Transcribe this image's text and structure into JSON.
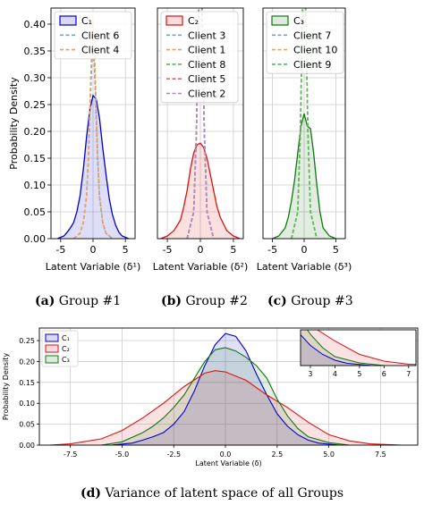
{
  "chart_data": [
    {
      "id": "a",
      "type": "line",
      "caption_letter": "(a)",
      "caption_text": " Group #1",
      "xlabel": "Latent Variable (δ¹)",
      "ylabel": "Probability Density",
      "xlim": [
        -6.5,
        6.5
      ],
      "ylim": [
        0,
        0.43
      ],
      "xticks": [
        -5,
        0,
        5
      ],
      "yticks": [
        0.0,
        0.05,
        0.1,
        0.15,
        0.2,
        0.25,
        0.3,
        0.35,
        0.4
      ],
      "grid": true,
      "legend_position": "top-left",
      "series": [
        {
          "name": "C₁",
          "color": "#0000cc",
          "kind": "filled",
          "x": [
            -5.5,
            -4.5,
            -4,
            -3.5,
            -3,
            -2.5,
            -2,
            -1.5,
            -1,
            -0.5,
            0,
            0.5,
            1,
            1.5,
            2,
            2.5,
            3,
            3.5,
            4,
            4.5,
            5.5
          ],
          "y": [
            0,
            0.005,
            0.012,
            0.02,
            0.03,
            0.05,
            0.08,
            0.13,
            0.19,
            0.24,
            0.267,
            0.26,
            0.225,
            0.17,
            0.12,
            0.075,
            0.045,
            0.025,
            0.012,
            0.005,
            0
          ]
        },
        {
          "name": "Client 6",
          "color": "#5fa8d9",
          "kind": "dashed",
          "x": [
            -3,
            -2,
            -1.5,
            -1,
            -0.7,
            -0.4,
            -0.2,
            0,
            0.2,
            0.4,
            0.7,
            1,
            1.5,
            2,
            3
          ],
          "y": [
            0,
            0.01,
            0.03,
            0.08,
            0.15,
            0.26,
            0.33,
            0.36,
            0.33,
            0.26,
            0.15,
            0.08,
            0.03,
            0.01,
            0
          ]
        },
        {
          "name": "Client 4",
          "color": "#f0a050",
          "kind": "dashed",
          "x": [
            -3,
            -2,
            -1.5,
            -1,
            -0.7,
            -0.4,
            -0.2,
            0,
            0.2,
            0.4,
            0.7,
            1,
            1.5,
            2,
            3
          ],
          "y": [
            0,
            0.01,
            0.03,
            0.08,
            0.16,
            0.28,
            0.36,
            0.41,
            0.36,
            0.28,
            0.16,
            0.08,
            0.03,
            0.01,
            0
          ]
        }
      ]
    },
    {
      "id": "b",
      "type": "line",
      "caption_letter": "(b)",
      "caption_text": " Group #2",
      "xlabel": "Latent Variable (δ²)",
      "ylabel": "",
      "xlim": [
        -6.5,
        6.5
      ],
      "ylim": [
        0,
        0.43
      ],
      "xticks": [
        -5,
        0,
        5
      ],
      "grid": true,
      "legend_position": "top-left",
      "series": [
        {
          "name": "C₂",
          "color": "#dd1111",
          "kind": "filled",
          "x": [
            -6,
            -5,
            -4,
            -3,
            -2.5,
            -2,
            -1.5,
            -1,
            -0.5,
            0,
            0.5,
            1,
            1.5,
            2,
            2.5,
            3,
            4,
            5,
            6
          ],
          "y": [
            0,
            0.005,
            0.015,
            0.035,
            0.06,
            0.09,
            0.13,
            0.16,
            0.175,
            0.178,
            0.17,
            0.15,
            0.12,
            0.09,
            0.06,
            0.04,
            0.015,
            0.005,
            0
          ]
        },
        {
          "name": "Client 3",
          "color": "#5fa8d9",
          "kind": "dashed",
          "x": [
            -2,
            -1,
            -0.6,
            -0.3,
            0,
            0.3,
            0.6,
            1,
            2
          ],
          "y": [
            0,
            0.05,
            0.2,
            0.4,
            0.6,
            0.4,
            0.2,
            0.05,
            0
          ]
        },
        {
          "name": "Client 1",
          "color": "#f0a050",
          "kind": "dashed",
          "x": [
            -2,
            -1,
            -0.6,
            -0.3,
            0,
            0.3,
            0.6,
            1,
            2
          ],
          "y": [
            0,
            0.05,
            0.2,
            0.4,
            0.6,
            0.4,
            0.2,
            0.05,
            0
          ]
        },
        {
          "name": "Client 8",
          "color": "#55bb55",
          "kind": "dashed",
          "x": [
            -2,
            -1,
            -0.6,
            -0.3,
            0,
            0.3,
            0.6,
            1,
            2
          ],
          "y": [
            0,
            0.05,
            0.2,
            0.4,
            0.6,
            0.4,
            0.2,
            0.05,
            0
          ]
        },
        {
          "name": "Client 5",
          "color": "#e06a6a",
          "kind": "dashed",
          "x": [
            -2,
            -1,
            -0.6,
            -0.3,
            0,
            0.3,
            0.6,
            1,
            2
          ],
          "y": [
            0,
            0.05,
            0.2,
            0.4,
            0.6,
            0.4,
            0.2,
            0.05,
            0
          ]
        },
        {
          "name": "Client 2",
          "color": "#a78bcc",
          "kind": "dashed",
          "x": [
            -2,
            -1,
            -0.6,
            -0.3,
            0,
            0.3,
            0.6,
            1,
            2
          ],
          "y": [
            0,
            0.05,
            0.2,
            0.4,
            0.6,
            0.4,
            0.2,
            0.05,
            0
          ]
        }
      ]
    },
    {
      "id": "c",
      "type": "line",
      "caption_letter": "(c)",
      "caption_text": " Group #3",
      "xlabel": "Latent Variable (δ³)",
      "ylabel": "",
      "xlim": [
        -6.5,
        6.5
      ],
      "ylim": [
        0,
        0.43
      ],
      "xticks": [
        -5,
        0,
        5
      ],
      "grid": true,
      "legend_position": "top-left",
      "series": [
        {
          "name": "C₃",
          "color": "#117711",
          "kind": "filled",
          "x": [
            -5,
            -4,
            -3,
            -2.5,
            -2,
            -1.5,
            -1,
            -0.5,
            0,
            0.5,
            1,
            1.5,
            2,
            2.5,
            3,
            4,
            5
          ],
          "y": [
            0,
            0.005,
            0.02,
            0.04,
            0.07,
            0.11,
            0.16,
            0.21,
            0.233,
            0.21,
            0.205,
            0.16,
            0.1,
            0.05,
            0.02,
            0.005,
            0
          ]
        },
        {
          "name": "Client 7",
          "color": "#5fa8d9",
          "kind": "dashed",
          "x": [
            -2,
            -1,
            -0.6,
            -0.3,
            0,
            0.3,
            0.6,
            1,
            2
          ],
          "y": [
            0,
            0.05,
            0.2,
            0.4,
            0.6,
            0.4,
            0.2,
            0.05,
            0
          ]
        },
        {
          "name": "Client 10",
          "color": "#f0a050",
          "kind": "dashed",
          "x": [
            -2,
            -1,
            -0.6,
            -0.3,
            0,
            0.3,
            0.6,
            1,
            2
          ],
          "y": [
            0,
            0.05,
            0.2,
            0.4,
            0.6,
            0.4,
            0.2,
            0.05,
            0
          ]
        },
        {
          "name": "Client 9",
          "color": "#55bb55",
          "kind": "dashed",
          "x": [
            -2,
            -1,
            -0.6,
            -0.3,
            0,
            0.3,
            0.6,
            1,
            2
          ],
          "y": [
            0,
            0.05,
            0.2,
            0.4,
            0.6,
            0.4,
            0.2,
            0.05,
            0
          ]
        }
      ]
    },
    {
      "id": "d",
      "type": "area",
      "caption_letter": "(d)",
      "caption_text": " Variance of latent space of all Groups",
      "xlabel": "Latent Variable (δ)",
      "ylabel": "Probability Density",
      "xlim": [
        -9,
        9.3
      ],
      "ylim": [
        0,
        0.28
      ],
      "xticks": [
        -7.5,
        -5.0,
        -2.5,
        0.0,
        2.5,
        5.0,
        7.5
      ],
      "yticks": [
        0.0,
        0.05,
        0.1,
        0.15,
        0.2,
        0.25
      ],
      "grid": true,
      "legend_position": "top-left",
      "inset": {
        "xlim": [
          2.6,
          7.3
        ],
        "xticks": [
          3,
          4,
          5,
          6,
          7
        ]
      },
      "series": [
        {
          "name": "C₁",
          "color": "#0000cc",
          "x": [
            -5.5,
            -4.5,
            -4,
            -3.5,
            -3,
            -2.5,
            -2,
            -1.5,
            -1,
            -0.5,
            0,
            0.5,
            1,
            1.5,
            2,
            2.5,
            3,
            3.5,
            4,
            4.5,
            5.5
          ],
          "y": [
            0,
            0.005,
            0.012,
            0.02,
            0.03,
            0.05,
            0.08,
            0.13,
            0.19,
            0.24,
            0.267,
            0.26,
            0.225,
            0.17,
            0.12,
            0.075,
            0.045,
            0.025,
            0.012,
            0.005,
            0
          ]
        },
        {
          "name": "C₂",
          "color": "#dd1111",
          "x": [
            -8.5,
            -7.5,
            -6,
            -5,
            -4,
            -3,
            -2,
            -1,
            -0.5,
            0,
            1,
            2,
            3,
            4,
            5,
            6,
            7,
            8.5
          ],
          "y": [
            0,
            0.003,
            0.015,
            0.035,
            0.065,
            0.1,
            0.14,
            0.172,
            0.178,
            0.175,
            0.155,
            0.12,
            0.09,
            0.055,
            0.025,
            0.01,
            0.003,
            0
          ]
        },
        {
          "name": "C₃",
          "color": "#117711",
          "x": [
            -6,
            -5,
            -4,
            -3.5,
            -3,
            -2.5,
            -2,
            -1.5,
            -1,
            -0.5,
            0,
            0.5,
            1,
            1.5,
            2,
            2.5,
            3,
            3.5,
            4,
            5,
            6
          ],
          "y": [
            0,
            0.008,
            0.03,
            0.045,
            0.065,
            0.09,
            0.12,
            0.16,
            0.2,
            0.228,
            0.233,
            0.225,
            0.21,
            0.19,
            0.16,
            0.11,
            0.07,
            0.04,
            0.02,
            0.006,
            0
          ]
        }
      ]
    }
  ]
}
